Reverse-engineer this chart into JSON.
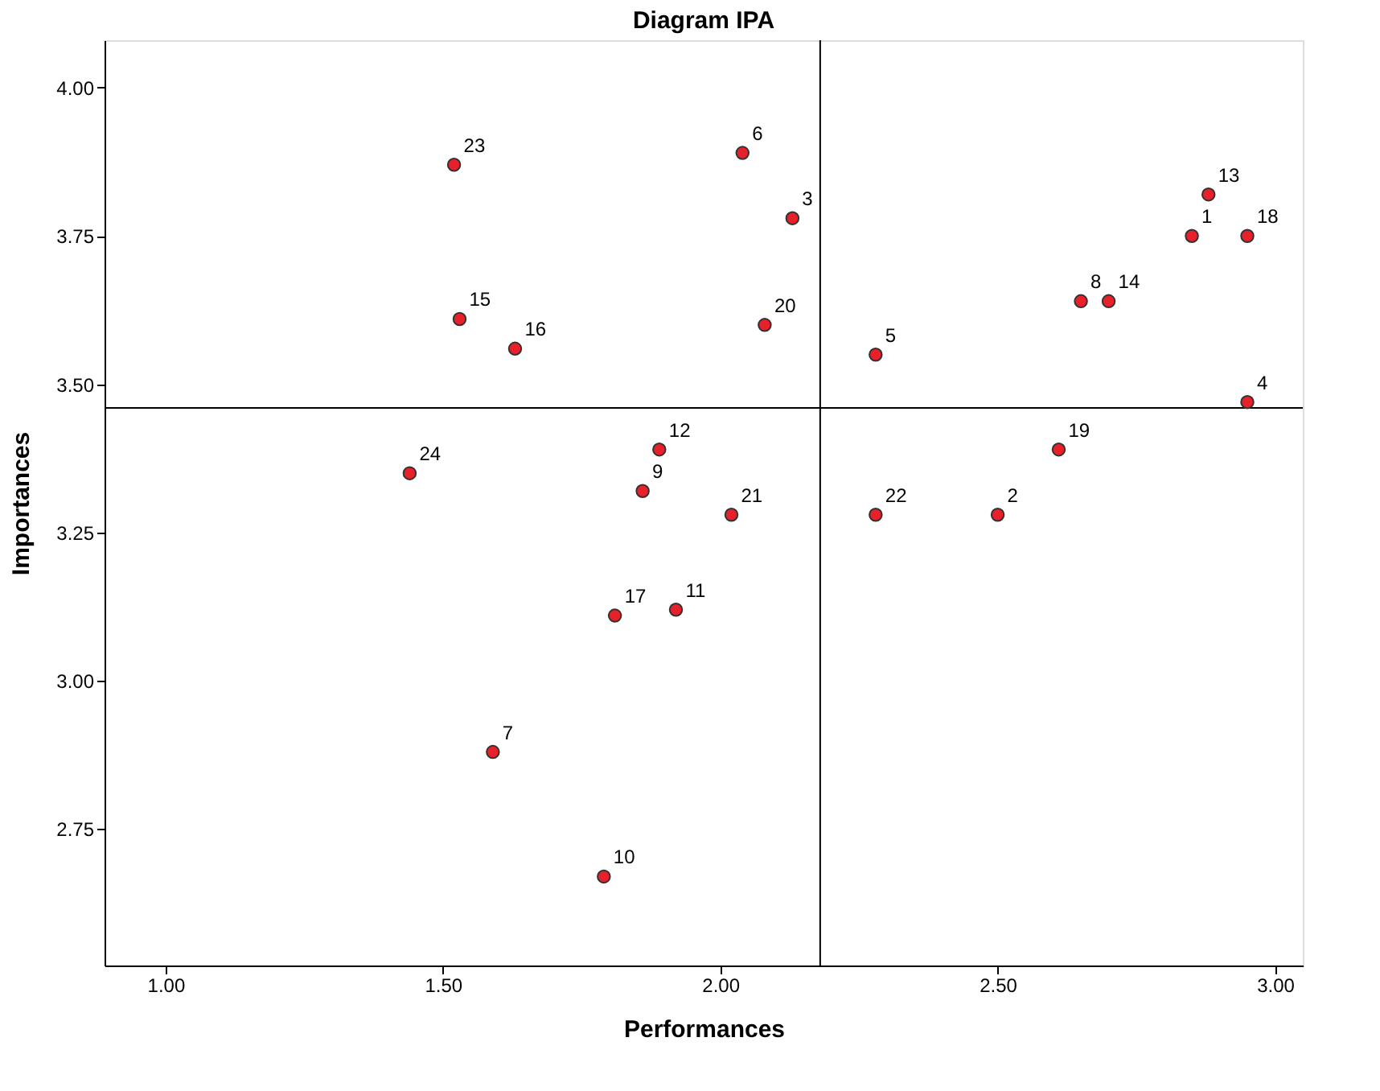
{
  "chart_data": {
    "type": "scatter",
    "title": "Diagram IPA",
    "xlabel": "Performances",
    "ylabel": "Importances",
    "x": [
      2.85,
      2.5,
      2.13,
      2.95,
      2.28,
      2.04,
      1.59,
      2.65,
      1.86,
      1.79,
      1.92,
      1.89,
      2.88,
      2.7,
      1.53,
      1.63,
      1.81,
      2.95,
      2.61,
      2.08,
      2.02,
      2.28,
      1.52,
      1.44
    ],
    "series": [
      {
        "color": "#e8202a",
        "values": [
          3.75,
          3.28,
          3.78,
          3.47,
          3.55,
          3.89,
          2.88,
          3.64,
          3.32,
          2.67,
          3.12,
          3.39,
          3.82,
          3.64,
          3.61,
          3.56,
          3.11,
          3.75,
          3.39,
          3.6,
          3.28,
          3.28,
          3.87,
          3.35
        ]
      }
    ],
    "annotations": [
      {
        "text": "1",
        "x": 2.85,
        "y": 3.75
      },
      {
        "text": "2",
        "x": 2.5,
        "y": 3.28
      },
      {
        "text": "3",
        "x": 2.13,
        "y": 3.78
      },
      {
        "text": "4",
        "x": 2.95,
        "y": 3.47
      },
      {
        "text": "5",
        "x": 2.28,
        "y": 3.55
      },
      {
        "text": "6",
        "x": 2.04,
        "y": 3.89
      },
      {
        "text": "7",
        "x": 1.59,
        "y": 2.88
      },
      {
        "text": "8",
        "x": 2.65,
        "y": 3.64
      },
      {
        "text": "9",
        "x": 1.86,
        "y": 3.32
      },
      {
        "text": "10",
        "x": 1.79,
        "y": 2.67
      },
      {
        "text": "11",
        "x": 1.92,
        "y": 3.12
      },
      {
        "text": "12",
        "x": 1.89,
        "y": 3.39
      },
      {
        "text": "13",
        "x": 2.88,
        "y": 3.82
      },
      {
        "text": "14",
        "x": 2.7,
        "y": 3.64
      },
      {
        "text": "15",
        "x": 1.53,
        "y": 3.61
      },
      {
        "text": "16",
        "x": 1.63,
        "y": 3.56
      },
      {
        "text": "17",
        "x": 1.81,
        "y": 3.11
      },
      {
        "text": "18",
        "x": 2.95,
        "y": 3.75
      },
      {
        "text": "19",
        "x": 2.61,
        "y": 3.39
      },
      {
        "text": "20",
        "x": 2.08,
        "y": 3.6
      },
      {
        "text": "21",
        "x": 2.02,
        "y": 3.28
      },
      {
        "text": "22",
        "x": 2.28,
        "y": 3.28
      },
      {
        "text": "23",
        "x": 1.52,
        "y": 3.87
      },
      {
        "text": "24",
        "x": 1.44,
        "y": 3.35
      }
    ],
    "xlim": [
      0.89,
      3.05
    ],
    "xticks": [
      {
        "value": 1,
        "label": "1.00"
      },
      {
        "value": 1.5,
        "label": "1.50"
      },
      {
        "value": 2,
        "label": "2.00"
      },
      {
        "value": 2.5,
        "label": "2.50"
      },
      {
        "value": 3,
        "label": "3.00"
      }
    ],
    "ylim": [
      2.52,
      4.08
    ],
    "yticks": [
      {
        "value": 2.75,
        "label": "2.75"
      },
      {
        "value": 3,
        "label": "3.00"
      },
      {
        "value": 3.25,
        "label": "3.25"
      },
      {
        "value": 3.5,
        "label": "3.50"
      },
      {
        "value": 3.75,
        "label": "3.75"
      },
      {
        "value": 4,
        "label": "4.00"
      }
    ],
    "ref_lines": [
      {
        "axis": "x",
        "value": 2.18
      },
      {
        "axis": "y",
        "value": 3.46
      }
    ],
    "marker": "circle",
    "grid": false
  }
}
